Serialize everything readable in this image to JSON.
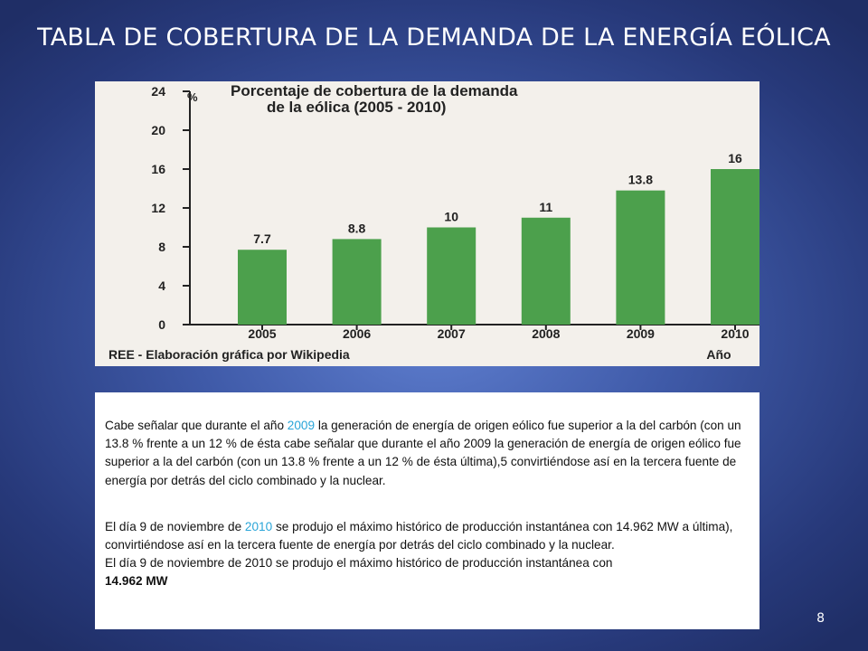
{
  "slide": {
    "title": "TABLA DE COBERTURA DE LA DEMANDA DE LA ENERGÍA EÓLICA",
    "page_number": "8",
    "background_color": "#3f5aa8"
  },
  "chart_data": {
    "type": "bar",
    "title_line1": "Porcentaje de cobertura de la demanda",
    "title_line2": "de la eólica (2005 - 2010)",
    "ylabel": "%",
    "xlabel": "Año",
    "source": "REE - Elaboración gráfica por Wikipedia",
    "categories": [
      "2005",
      "2006",
      "2007",
      "2008",
      "2009",
      "2010"
    ],
    "values": [
      7.7,
      8.8,
      10,
      11,
      13.8,
      16
    ],
    "value_labels": [
      "7.7",
      "8.8",
      "10",
      "11",
      "13.8",
      "16"
    ],
    "yticks": [
      "0",
      "4",
      "8",
      "12",
      "16",
      "20",
      "24"
    ],
    "ylim": [
      0,
      24
    ],
    "bar_color": "#4ca04c"
  },
  "text": {
    "p1_before": "Cabe señalar que durante el año ",
    "p1_year": "2009",
    "p1_after": " la generación de energía de origen eólico fue superior a la del carbón (con un 13.8 % frente a un 12 % de ésta cabe señalar que durante el año 2009 la generación de energía de origen eólico fue superior a la del carbón (con un 13.8 % frente a un 12 % de ésta última),5 convirtiéndose así en la tercera fuente de energía por detrás del ciclo combinado y la nuclear.",
    "p2_before": "El día 9 de noviembre de ",
    "p2_year": "2010",
    "p2_after": " se produjo el máximo histórico de producción instantánea con 14.962 MW a última), convirtiéndose así en la tercera fuente de energía por detrás del ciclo combinado y la nuclear.",
    "p3_text": "El día 9 de noviembre de 2010 se produjo el máximo histórico de producción instantánea con",
    "p3_bold": "14.962 MW"
  }
}
